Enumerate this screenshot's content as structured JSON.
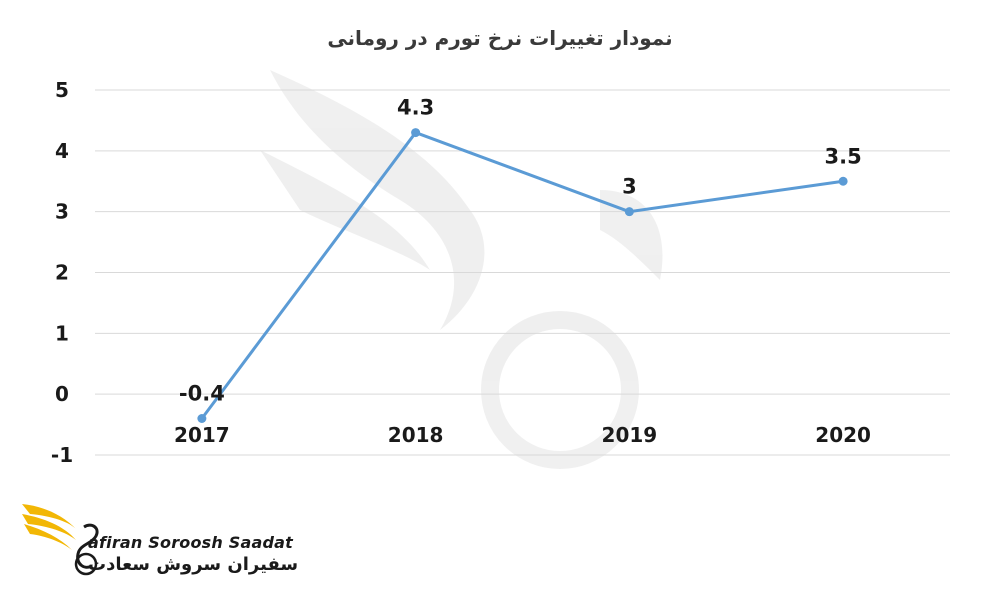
{
  "chart_data": {
    "type": "line",
    "title": "نمودار تغییرات نرخ تورم در رومانی",
    "xlabel": "",
    "ylabel": "",
    "categories": [
      "2017",
      "2018",
      "2019",
      "2020"
    ],
    "series": [
      {
        "values": [
          -0.4,
          4.3,
          3,
          3.5
        ],
        "labels": [
          "-0.4",
          "4.3",
          "3",
          "3.5"
        ],
        "color": "#5b9bd5"
      }
    ],
    "ylim": [
      -1,
      5
    ],
    "yticks": [
      -1,
      0,
      1,
      2,
      3,
      4,
      5
    ],
    "grid": true,
    "legend": "none"
  },
  "logo": {
    "name_en": "afiran Soroosh Saadat",
    "name_fa": "سفیران سروش سعادت",
    "accent": "#f2b705"
  }
}
